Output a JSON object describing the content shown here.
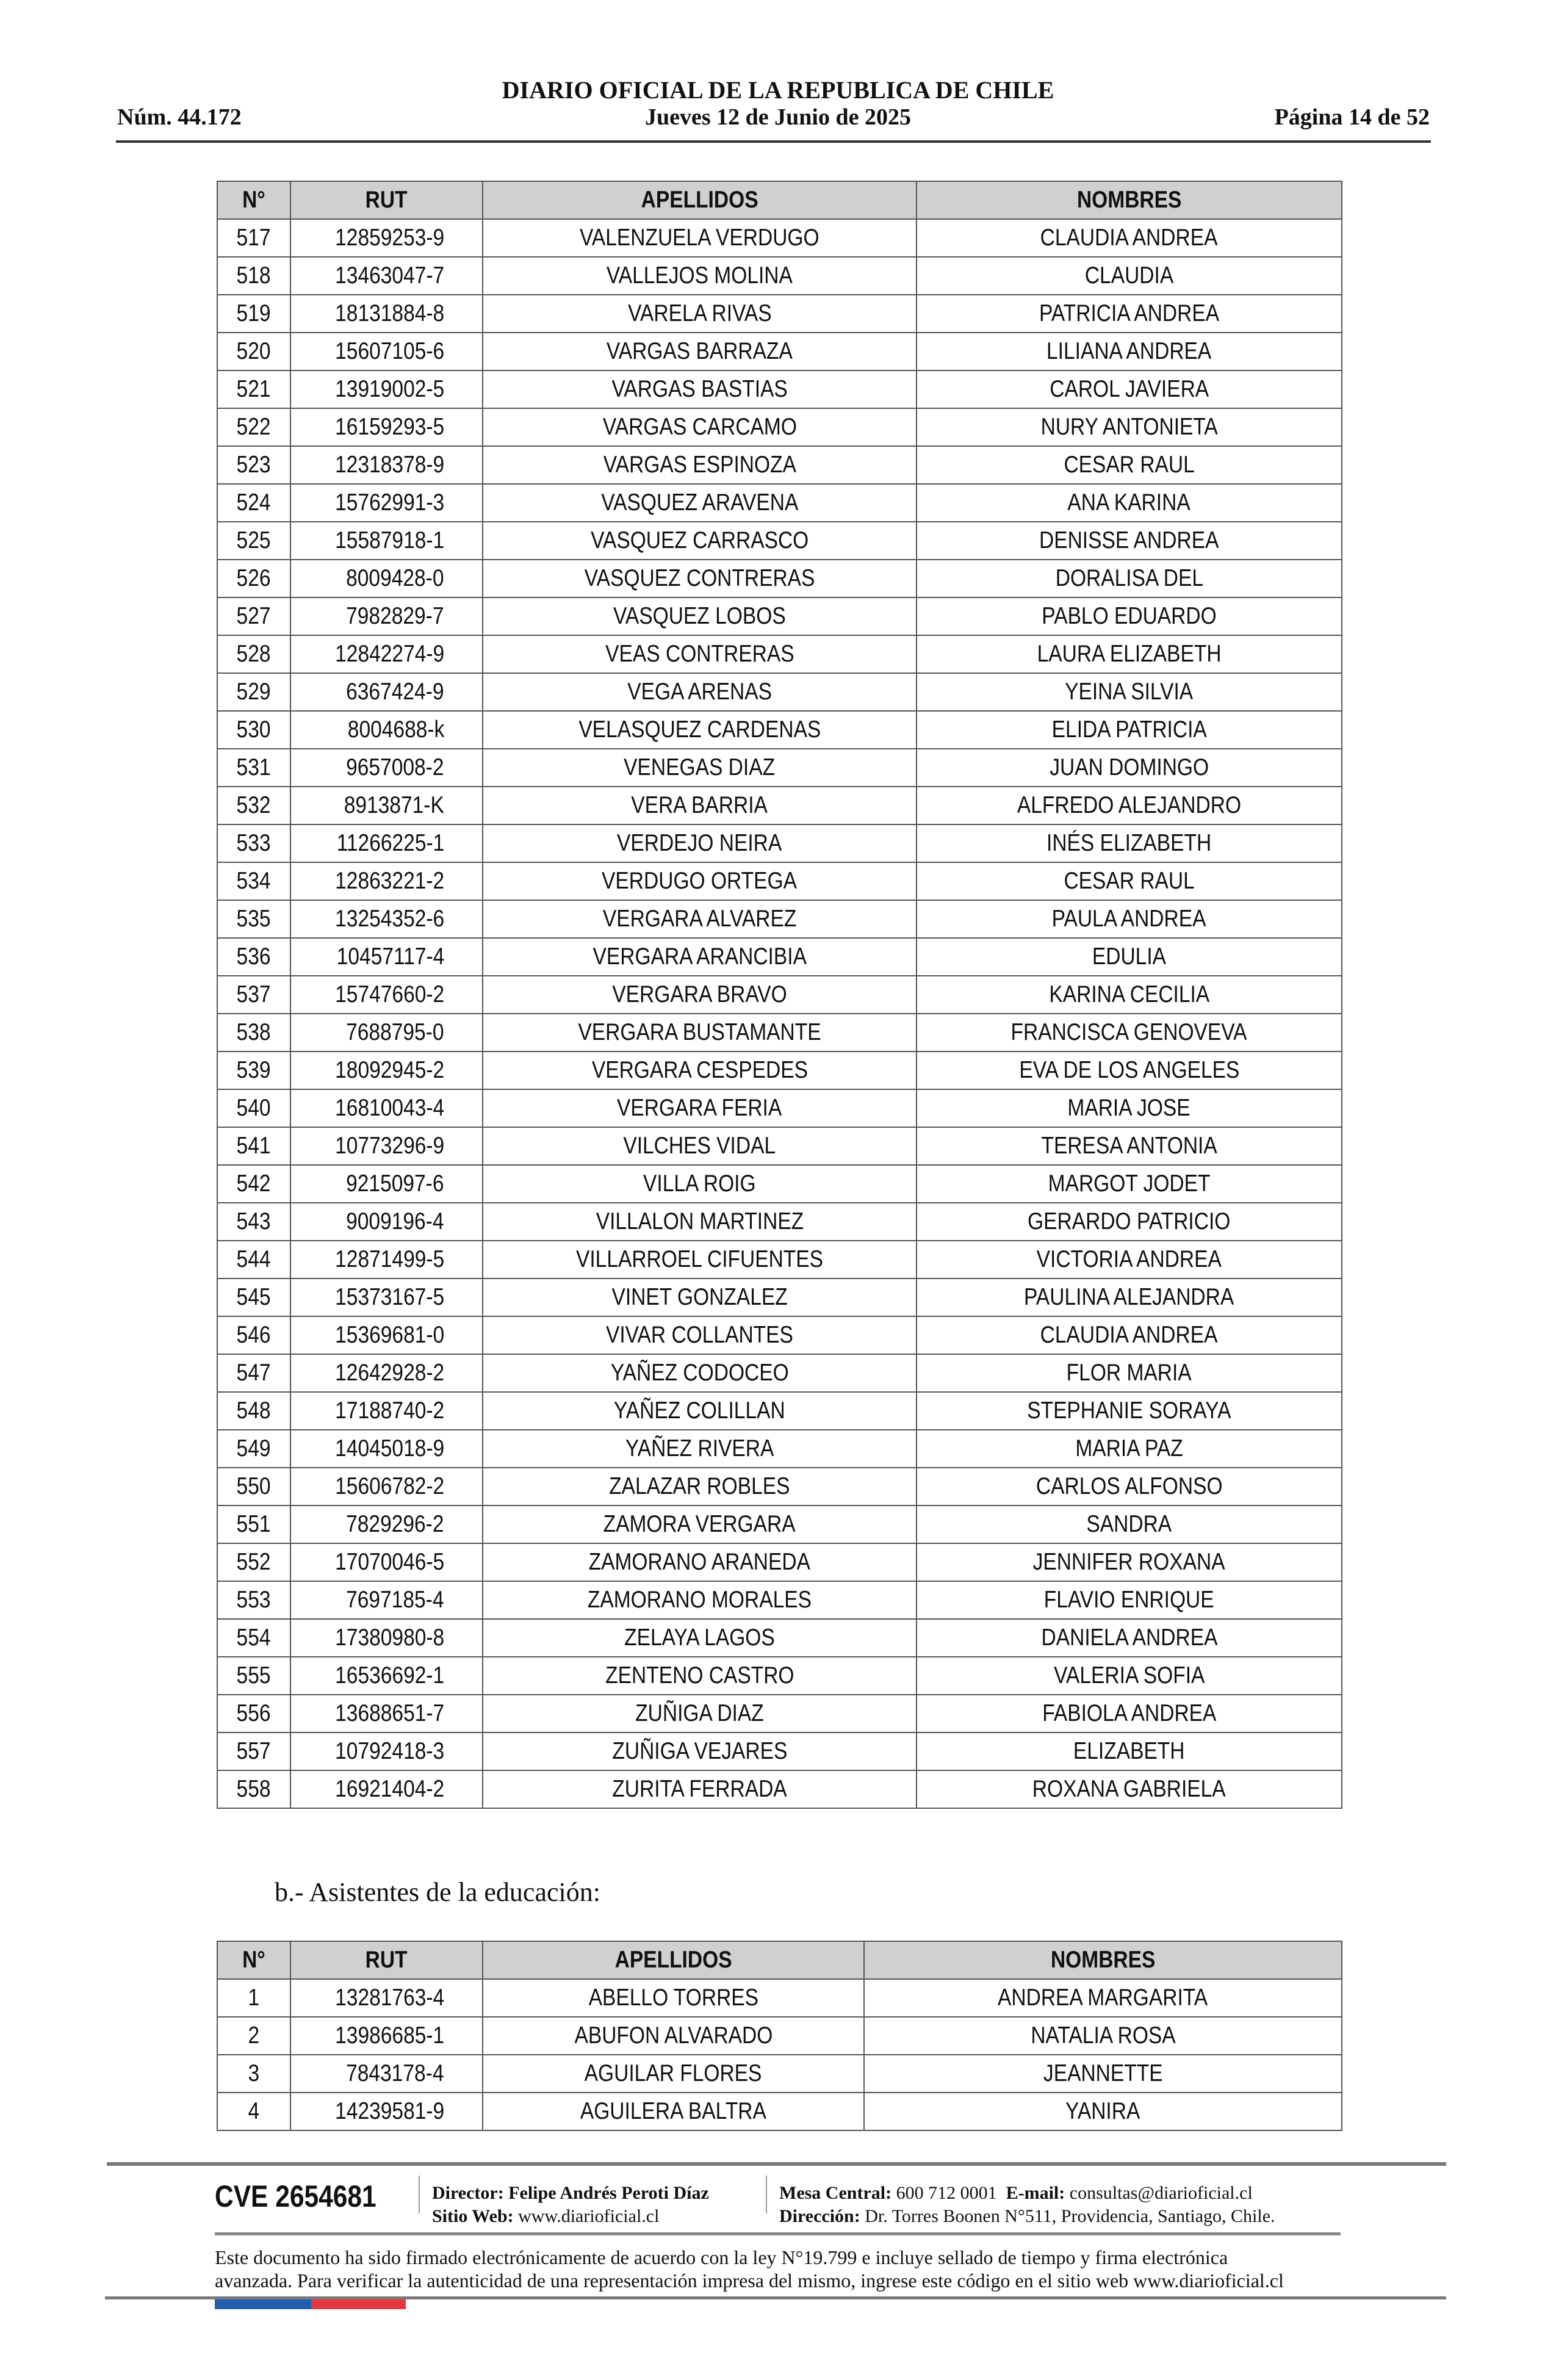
{
  "header": {
    "number": "Núm. 44.172",
    "title": "DIARIO OFICIAL DE LA REPUBLICA DE CHILE",
    "date": "Jueves 12 de Junio de 2025",
    "page": "Página 14 de 52"
  },
  "table1": {
    "columns": [
      "N°",
      "RUT",
      "APELLIDOS",
      "NOMBRES"
    ],
    "rows": [
      [
        "517",
        "12859253-9",
        "VALENZUELA VERDUGO",
        "CLAUDIA ANDREA"
      ],
      [
        "518",
        "13463047-7",
        "VALLEJOS MOLINA",
        "CLAUDIA"
      ],
      [
        "519",
        "18131884-8",
        "VARELA RIVAS",
        "PATRICIA ANDREA"
      ],
      [
        "520",
        "15607105-6",
        "VARGAS BARRAZA",
        "LILIANA ANDREA"
      ],
      [
        "521",
        "13919002-5",
        "VARGAS BASTIAS",
        "CAROL JAVIERA"
      ],
      [
        "522",
        "16159293-5",
        "VARGAS CARCAMO",
        "NURY ANTONIETA"
      ],
      [
        "523",
        "12318378-9",
        "VARGAS ESPINOZA",
        "CESAR RAUL"
      ],
      [
        "524",
        "15762991-3",
        "VASQUEZ ARAVENA",
        "ANA KARINA"
      ],
      [
        "525",
        "15587918-1",
        "VASQUEZ CARRASCO",
        "DENISSE ANDREA"
      ],
      [
        "526",
        "8009428-0",
        "VASQUEZ CONTRERAS",
        "DORALISA DEL"
      ],
      [
        "527",
        "7982829-7",
        "VASQUEZ LOBOS",
        "PABLO EDUARDO"
      ],
      [
        "528",
        "12842274-9",
        "VEAS CONTRERAS",
        "LAURA ELIZABETH"
      ],
      [
        "529",
        "6367424-9",
        "VEGA ARENAS",
        "YEINA SILVIA"
      ],
      [
        "530",
        "8004688-k",
        "VELASQUEZ CARDENAS",
        "ELIDA PATRICIA"
      ],
      [
        "531",
        "9657008-2",
        "VENEGAS DIAZ",
        "JUAN DOMINGO"
      ],
      [
        "532",
        "8913871-K",
        "VERA BARRIA",
        "ALFREDO ALEJANDRO"
      ],
      [
        "533",
        "11266225-1",
        "VERDEJO NEIRA",
        "INÉS ELIZABETH"
      ],
      [
        "534",
        "12863221-2",
        "VERDUGO ORTEGA",
        "CESAR RAUL"
      ],
      [
        "535",
        "13254352-6",
        "VERGARA ALVAREZ",
        "PAULA ANDREA"
      ],
      [
        "536",
        "10457117-4",
        "VERGARA ARANCIBIA",
        "EDULIA"
      ],
      [
        "537",
        "15747660-2",
        "VERGARA BRAVO",
        "KARINA CECILIA"
      ],
      [
        "538",
        "7688795-0",
        "VERGARA BUSTAMANTE",
        "FRANCISCA GENOVEVA"
      ],
      [
        "539",
        "18092945-2",
        "VERGARA CESPEDES",
        "EVA DE LOS ANGELES"
      ],
      [
        "540",
        "16810043-4",
        "VERGARA FERIA",
        "MARIA JOSE"
      ],
      [
        "541",
        "10773296-9",
        "VILCHES VIDAL",
        "TERESA ANTONIA"
      ],
      [
        "542",
        "9215097-6",
        "VILLA ROIG",
        "MARGOT JODET"
      ],
      [
        "543",
        "9009196-4",
        "VILLALON MARTINEZ",
        "GERARDO PATRICIO"
      ],
      [
        "544",
        "12871499-5",
        "VILLARROEL CIFUENTES",
        "VICTORIA ANDREA"
      ],
      [
        "545",
        "15373167-5",
        "VINET GONZALEZ",
        "PAULINA ALEJANDRA"
      ],
      [
        "546",
        "15369681-0",
        "VIVAR COLLANTES",
        "CLAUDIA ANDREA"
      ],
      [
        "547",
        "12642928-2",
        "YAÑEZ  CODOCEO",
        "FLOR MARIA"
      ],
      [
        "548",
        "17188740-2",
        "YAÑEZ COLILLAN",
        "STEPHANIE SORAYA"
      ],
      [
        "549",
        "14045018-9",
        "YAÑEZ RIVERA",
        "MARIA PAZ"
      ],
      [
        "550",
        "15606782-2",
        "ZALAZAR ROBLES",
        "CARLOS ALFONSO"
      ],
      [
        "551",
        "7829296-2",
        "ZAMORA VERGARA",
        "SANDRA"
      ],
      [
        "552",
        "17070046-5",
        "ZAMORANO ARANEDA",
        "JENNIFER ROXANA"
      ],
      [
        "553",
        "7697185-4",
        "ZAMORANO MORALES",
        "FLAVIO ENRIQUE"
      ],
      [
        "554",
        "17380980-8",
        "ZELAYA LAGOS",
        "DANIELA ANDREA"
      ],
      [
        "555",
        "16536692-1",
        "ZENTENO CASTRO",
        "VALERIA SOFIA"
      ],
      [
        "556",
        "13688651-7",
        "ZUÑIGA DIAZ",
        "FABIOLA ANDREA"
      ],
      [
        "557",
        "10792418-3",
        "ZUÑIGA VEJARES",
        "ELIZABETH"
      ],
      [
        "558",
        "16921404-2",
        "ZURITA FERRADA",
        "ROXANA GABRIELA"
      ]
    ]
  },
  "section_b": "b.- Asistentes de la educación:",
  "table2": {
    "columns": [
      "N°",
      "RUT",
      "APELLIDOS",
      "NOMBRES"
    ],
    "rows": [
      [
        "1",
        "13281763-4",
        "ABELLO TORRES",
        "ANDREA MARGARITA"
      ],
      [
        "2",
        "13986685-1",
        "ABUFON ALVARADO",
        "NATALIA ROSA"
      ],
      [
        "3",
        "7843178-4",
        "AGUILAR FLORES",
        "JEANNETTE"
      ],
      [
        "4",
        "14239581-9",
        "AGUILERA BALTRA",
        "YANIRA"
      ]
    ]
  },
  "footer": {
    "cve": "CVE 2654681",
    "director_label": "Director:",
    "director": "Felipe Andrés Peroti Díaz",
    "site_label": "Sitio Web:",
    "site": "www.diarioficial.cl",
    "phone_label": "Mesa Central:",
    "phone": "600 712 0001",
    "email_label": "E-mail:",
    "email": "consultas@diarioficial.cl",
    "address_label": "Dirección:",
    "address": "Dr. Torres Boonen N°511, Providencia, Santiago, Chile.",
    "disclaimer_1": "Este documento ha sido firmado electrónicamente de acuerdo con la ley N°19.799 e incluye sellado de tiempo y firma electrónica",
    "disclaimer_2": "avanzada. Para verificar la autenticidad de una representación impresa del mismo, ingrese este código en el sitio web www.diarioficial.cl",
    "flag_colors": [
      "#1f5fae",
      "#e5373e"
    ]
  }
}
